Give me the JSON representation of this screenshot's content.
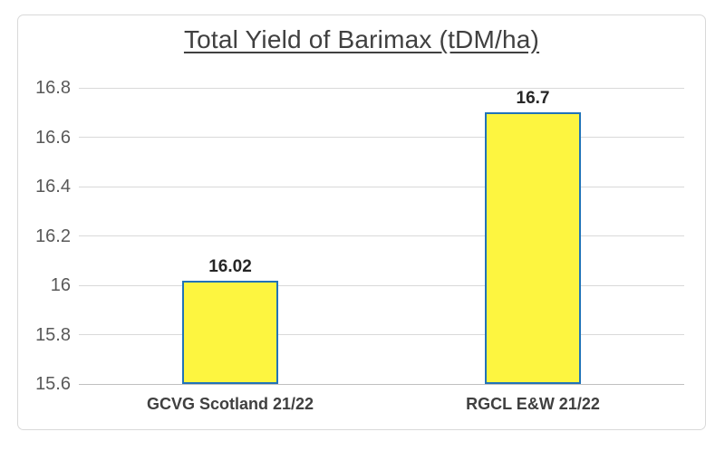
{
  "chart_data": {
    "type": "bar",
    "title": "Total Yield of Barimax (tDM/ha)",
    "categories": [
      "GCVG Scotland 21/22",
      "RGCL E&W 21/22"
    ],
    "values": [
      16.02,
      16.7
    ],
    "data_labels": [
      "16.02",
      "16.7"
    ],
    "xlabel": "",
    "ylabel": "",
    "ylim": [
      15.6,
      16.8
    ],
    "yticks": [
      {
        "value": 16.8,
        "label": "16.8"
      },
      {
        "value": 16.6,
        "label": "16.6"
      },
      {
        "value": 16.4,
        "label": "16.4"
      },
      {
        "value": 16.2,
        "label": "16.2"
      },
      {
        "value": 16.0,
        "label": "16"
      },
      {
        "value": 15.8,
        "label": "15.8"
      },
      {
        "value": 15.6,
        "label": "15.6"
      }
    ],
    "grid": true,
    "legend_position": "none",
    "colors": {
      "bar_fill": "#fdf540",
      "bar_border": "#2173b8",
      "gridline": "#d9d9d9",
      "axis_line": "#c0c0c0",
      "title_text": "#404040",
      "tick_text": "#595959",
      "data_label_text": "#262626",
      "category_text": "#404040",
      "frame_border": "#d9d9d9"
    }
  }
}
